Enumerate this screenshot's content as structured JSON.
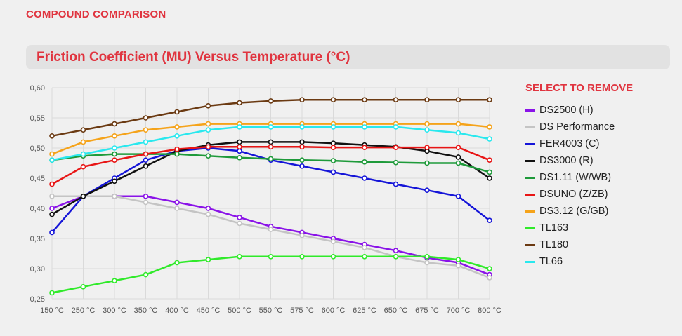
{
  "header": {
    "section_heading": "COMPOUND COMPARISON"
  },
  "legend": {
    "title": "SELECT TO REMOVE"
  },
  "chart_data": {
    "type": "line",
    "title": "Friction Coefficient (MU) Versus Temperature (°C)",
    "xlabel": "",
    "ylabel": "",
    "categories": [
      "150 °C",
      "250 °C",
      "300 °C",
      "350 °C",
      "400 °C",
      "450 °C",
      "500 °C",
      "550 °C",
      "575 °C",
      "600 °C",
      "625 °C",
      "650 °C",
      "675 °C",
      "700 °C",
      "800 °C"
    ],
    "ylim": [
      0.25,
      0.6
    ],
    "yticks": [
      "0,25",
      "0,30",
      "0,35",
      "0,40",
      "0,45",
      "0,50",
      "0,55",
      "0,60"
    ],
    "grid": true,
    "legend_position": "right",
    "series": [
      {
        "name": "DS2500 (H)",
        "color": "#8a13e8",
        "values": [
          0.4,
          0.42,
          0.42,
          0.42,
          0.41,
          0.4,
          0.385,
          0.37,
          0.36,
          0.35,
          0.34,
          0.33,
          0.318,
          0.31,
          0.29
        ]
      },
      {
        "name": "DS Performance",
        "color": "#c4c4c4",
        "values": [
          0.42,
          0.42,
          0.42,
          0.41,
          0.4,
          0.39,
          0.375,
          0.365,
          0.355,
          0.345,
          0.335,
          0.32,
          0.31,
          0.305,
          0.285
        ]
      },
      {
        "name": "FER4003 (C)",
        "color": "#1515d8",
        "values": [
          0.36,
          0.42,
          0.45,
          0.48,
          0.495,
          0.5,
          0.495,
          0.48,
          0.47,
          0.46,
          0.45,
          0.44,
          0.43,
          0.42,
          0.38
        ]
      },
      {
        "name": "DS3000 (R)",
        "color": "#111111",
        "values": [
          0.39,
          0.42,
          0.445,
          0.47,
          0.495,
          0.505,
          0.51,
          0.51,
          0.51,
          0.508,
          0.505,
          0.502,
          0.495,
          0.485,
          0.45
        ]
      },
      {
        "name": "DS1.11 (W/WB)",
        "color": "#1e9a3a",
        "values": [
          0.48,
          0.487,
          0.49,
          0.49,
          0.49,
          0.487,
          0.484,
          0.482,
          0.48,
          0.479,
          0.477,
          0.476,
          0.475,
          0.475,
          0.46
        ]
      },
      {
        "name": "DSUNO (Z/ZB)",
        "color": "#e81515",
        "values": [
          0.44,
          0.469,
          0.48,
          0.49,
          0.498,
          0.502,
          0.502,
          0.502,
          0.502,
          0.501,
          0.501,
          0.501,
          0.501,
          0.501,
          0.48
        ]
      },
      {
        "name": "DS3.12 (G/GB)",
        "color": "#f5a31a",
        "values": [
          0.49,
          0.51,
          0.52,
          0.53,
          0.535,
          0.54,
          0.54,
          0.54,
          0.54,
          0.54,
          0.54,
          0.54,
          0.54,
          0.54,
          0.535
        ]
      },
      {
        "name": "TL163",
        "color": "#30ea2a",
        "values": [
          0.26,
          0.27,
          0.28,
          0.29,
          0.31,
          0.315,
          0.32,
          0.32,
          0.32,
          0.32,
          0.32,
          0.32,
          0.32,
          0.315,
          0.3
        ]
      },
      {
        "name": "TL180",
        "color": "#6b3a12",
        "values": [
          0.52,
          0.53,
          0.54,
          0.55,
          0.56,
          0.57,
          0.575,
          0.578,
          0.58,
          0.58,
          0.58,
          0.58,
          0.58,
          0.58,
          0.58
        ]
      },
      {
        "name": "TL66",
        "color": "#29e8ee",
        "values": [
          0.48,
          0.49,
          0.5,
          0.51,
          0.52,
          0.53,
          0.535,
          0.535,
          0.535,
          0.535,
          0.535,
          0.535,
          0.53,
          0.525,
          0.515
        ]
      }
    ]
  }
}
